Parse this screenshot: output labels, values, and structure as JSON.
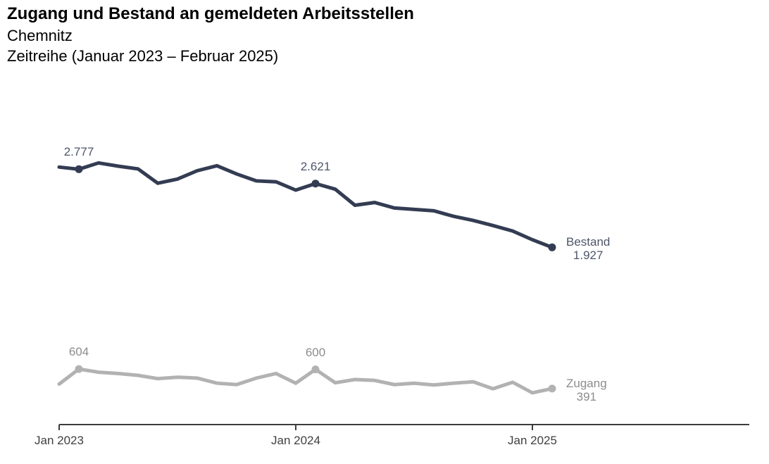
{
  "header": {
    "title": "Zugang und Bestand an gemeldeten Arbeitsstellen",
    "region": "Chemnitz",
    "subtitle": "Zeitreihe (Januar 2023 – Februar 2025)"
  },
  "colors": {
    "background": "#FFFFFF",
    "title_text": "#000000",
    "axis": "#3C3C3C",
    "axis_label": "#3F3F3F",
    "bestand_line": "#333C52",
    "bestand_label": "#4D5669",
    "zugang_line": "#B2B2B2",
    "zugang_label": "#8C8C8C"
  },
  "chart_data": {
    "type": "line",
    "title": "Zugang und Bestand an gemeldeten Arbeitsstellen",
    "subtitle": "Chemnitz – Zeitreihe (Januar 2023 – Februar 2025)",
    "x": [
      "Jan 2023",
      "Feb 2023",
      "Mär 2023",
      "Apr 2023",
      "Mai 2023",
      "Jun 2023",
      "Jul 2023",
      "Aug 2023",
      "Sep 2023",
      "Okt 2023",
      "Nov 2023",
      "Dez 2023",
      "Jan 2024",
      "Feb 2024",
      "Mär 2024",
      "Apr 2024",
      "Mai 2024",
      "Jun 2024",
      "Jul 2024",
      "Aug 2024",
      "Sep 2024",
      "Okt 2024",
      "Nov 2024",
      "Dez 2024",
      "Jan 2025",
      "Feb 2025"
    ],
    "x_tick_labels": [
      "Jan 2023",
      "Jan 2024",
      "Jan 2025"
    ],
    "x_tick_indices": [
      0,
      12,
      24
    ],
    "ylim": [
      0,
      3000
    ],
    "grid": false,
    "legend_position": "line-end",
    "series": [
      {
        "name": "Bestand",
        "color": "#333C52",
        "label_color": "#4D5669",
        "values": [
          2800,
          2777,
          2845,
          2810,
          2780,
          2625,
          2670,
          2760,
          2815,
          2725,
          2650,
          2640,
          2550,
          2621,
          2560,
          2385,
          2415,
          2355,
          2340,
          2325,
          2265,
          2220,
          2165,
          2105,
          2010,
          1927
        ],
        "marker_indices": [
          1,
          13,
          25
        ],
        "point_labels": [
          {
            "index": 1,
            "text": "2.777"
          },
          {
            "index": 13,
            "text": "2.621"
          }
        ],
        "end_label": {
          "name": "Bestand",
          "value": "1.927"
        }
      },
      {
        "name": "Zugang",
        "color": "#B2B2B2",
        "label_color": "#8C8C8C",
        "values": [
          440,
          604,
          570,
          555,
          535,
          500,
          515,
          505,
          450,
          435,
          505,
          555,
          450,
          600,
          455,
          490,
          480,
          435,
          450,
          430,
          450,
          465,
          390,
          460,
          345,
          391
        ],
        "marker_indices": [
          1,
          13,
          25
        ],
        "point_labels": [
          {
            "index": 1,
            "text": "604"
          },
          {
            "index": 13,
            "text": "600"
          }
        ],
        "end_label": {
          "name": "Zugang",
          "value": "391"
        }
      }
    ]
  }
}
